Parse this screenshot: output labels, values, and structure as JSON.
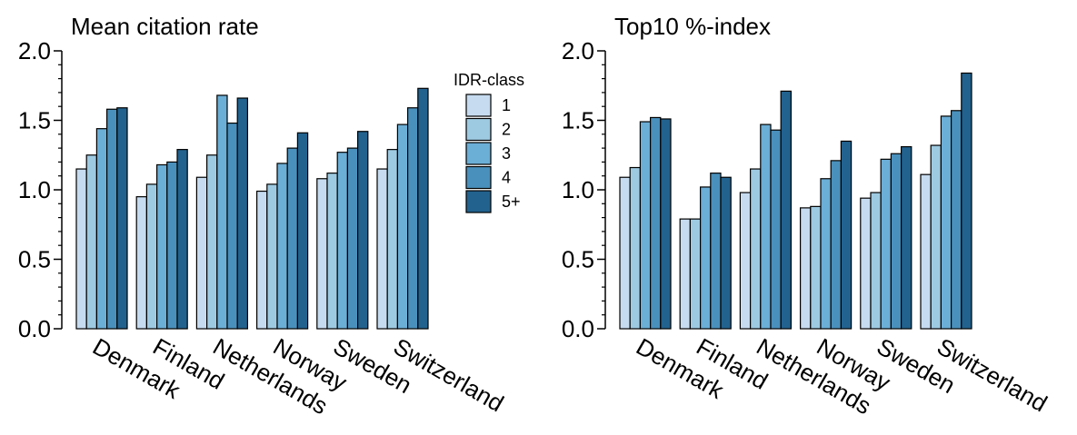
{
  "legend": {
    "title": "IDR-class",
    "entries": [
      "1",
      "2",
      "3",
      "4",
      "5+"
    ],
    "colors": [
      "#c6dbef",
      "#9ecae1",
      "#6baed6",
      "#4a90bc",
      "#22628e"
    ]
  },
  "chart_data": [
    {
      "type": "bar",
      "title": "Mean citation rate",
      "xlabel": "",
      "ylabel": "",
      "ylim": [
        0,
        2.0
      ],
      "yticks": [
        "0.0",
        "0.5",
        "1.0",
        "1.5",
        "2.0"
      ],
      "categories": [
        "Denmark",
        "Finland",
        "Netherlands",
        "Norway",
        "Sweden",
        "Switzerland"
      ],
      "series": [
        {
          "name": "1",
          "values": [
            1.15,
            0.95,
            1.09,
            0.99,
            1.08,
            1.15
          ]
        },
        {
          "name": "2",
          "values": [
            1.25,
            1.04,
            1.25,
            1.04,
            1.12,
            1.29
          ]
        },
        {
          "name": "3",
          "values": [
            1.44,
            1.18,
            1.68,
            1.19,
            1.27,
            1.47
          ]
        },
        {
          "name": "4",
          "values": [
            1.58,
            1.2,
            1.48,
            1.3,
            1.3,
            1.59
          ]
        },
        {
          "name": "5+",
          "values": [
            1.59,
            1.29,
            1.66,
            1.41,
            1.42,
            1.73
          ]
        }
      ]
    },
    {
      "type": "bar",
      "title": "Top10 %-index",
      "xlabel": "",
      "ylabel": "",
      "ylim": [
        0,
        2.0
      ],
      "yticks": [
        "0.0",
        "0.5",
        "1.0",
        "1.5",
        "2.0"
      ],
      "categories": [
        "Denmark",
        "Finland",
        "Netherlands",
        "Norway",
        "Sweden",
        "Switzerland"
      ],
      "series": [
        {
          "name": "1",
          "values": [
            1.09,
            0.79,
            0.98,
            0.87,
            0.94,
            1.11
          ]
        },
        {
          "name": "2",
          "values": [
            1.16,
            0.79,
            1.15,
            0.88,
            0.98,
            1.32
          ]
        },
        {
          "name": "3",
          "values": [
            1.49,
            1.02,
            1.47,
            1.08,
            1.22,
            1.53
          ]
        },
        {
          "name": "4",
          "values": [
            1.52,
            1.12,
            1.43,
            1.21,
            1.26,
            1.57
          ]
        },
        {
          "name": "5+",
          "values": [
            1.51,
            1.09,
            1.71,
            1.35,
            1.31,
            1.84
          ]
        }
      ]
    }
  ]
}
